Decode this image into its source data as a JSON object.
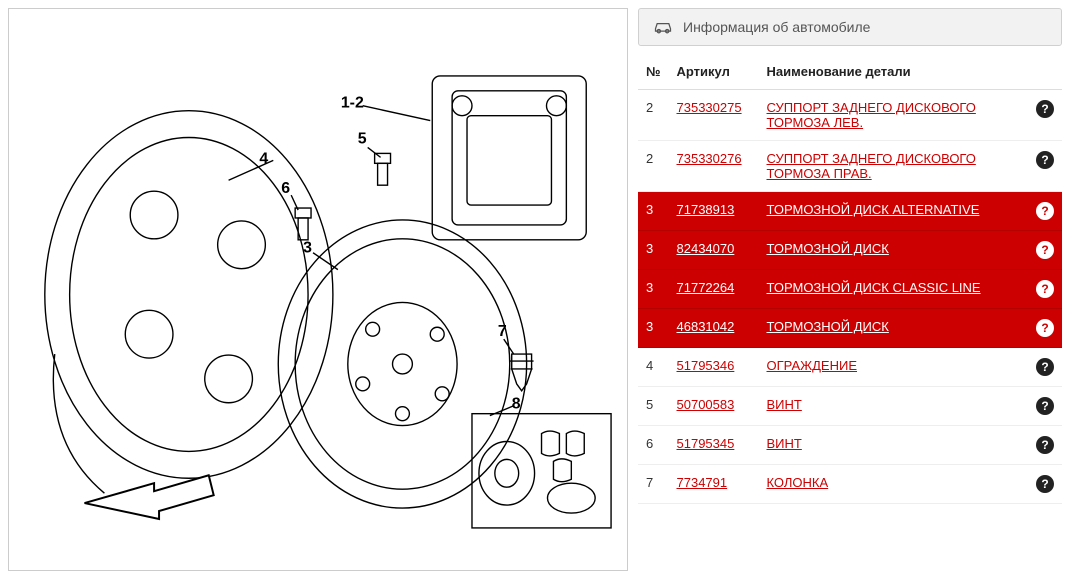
{
  "info_box": {
    "label": "Информация об автомобиле"
  },
  "table": {
    "headers": {
      "num": "№",
      "article": "Артикул",
      "name": "Наименование детали"
    },
    "rows": [
      {
        "num": "2",
        "article": "735330275",
        "name": "СУППОРТ ЗАДНЕГО ДИСКОВОГО ТОРМОЗА ЛЕВ.",
        "highlight": false
      },
      {
        "num": "2",
        "article": "735330276",
        "name": "СУППОРТ ЗАДНЕГО ДИСКОВОГО ТОРМОЗА ПРАВ.",
        "highlight": false
      },
      {
        "num": "3",
        "article": "71738913",
        "name": "ТОРМОЗНОЙ ДИСК ALTERNATIVE",
        "highlight": true
      },
      {
        "num": "3",
        "article": "82434070",
        "name": "ТОРМОЗНОЙ ДИСК",
        "highlight": true
      },
      {
        "num": "3",
        "article": "71772264",
        "name": "ТОРМОЗНОЙ ДИСК CLASSIC LINE",
        "highlight": true
      },
      {
        "num": "3",
        "article": "46831042",
        "name": "ТОРМОЗНОЙ ДИСК",
        "highlight": true
      },
      {
        "num": "4",
        "article": "51795346",
        "name": "ОГРАЖДЕНИЕ",
        "highlight": false
      },
      {
        "num": "5",
        "article": "50700583",
        "name": "ВИНТ",
        "highlight": false
      },
      {
        "num": "6",
        "article": "51795345",
        "name": "ВИНТ",
        "highlight": false
      },
      {
        "num": "7",
        "article": "7734791",
        "name": "КОЛОНКА",
        "highlight": false
      }
    ]
  },
  "diagram": {
    "labels": [
      "1-2",
      "3",
      "4",
      "5",
      "6",
      "7",
      "8"
    ],
    "stroke": "#000000",
    "line_width": 1.4,
    "label_font_size": 16,
    "label_font_weight": "bold",
    "background": "#ffffff"
  },
  "colors": {
    "highlight_bg": "#cc0000",
    "link_color": "#cc0000",
    "border": "#d0d0d0",
    "panel_bg": "#f2f2f2",
    "help_icon_dark": "#222222"
  }
}
